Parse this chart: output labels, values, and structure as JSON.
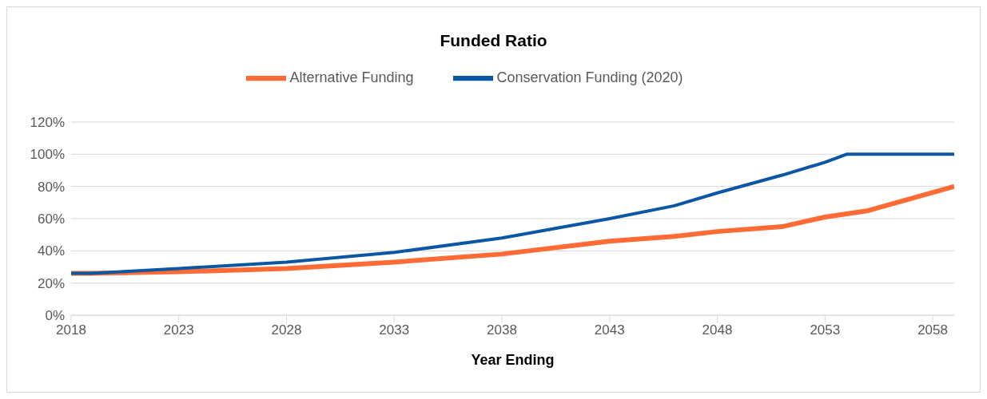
{
  "chart_data": {
    "type": "line",
    "title": "Funded Ratio",
    "xlabel": "Year Ending",
    "x": [
      2018,
      2019,
      2023,
      2028,
      2033,
      2038,
      2043,
      2046,
      2048,
      2051,
      2053,
      2054,
      2055,
      2059
    ],
    "series": [
      {
        "name": "Alternative Funding",
        "color": "#ff6b35",
        "values": [
          26,
          26,
          27,
          29,
          33,
          38,
          46,
          49,
          52,
          55,
          61,
          63,
          65,
          80
        ]
      },
      {
        "name": "Conservation Funding (2020)",
        "color": "#0b57a4",
        "values": [
          26,
          26,
          29,
          33,
          39,
          48,
          60,
          68,
          76,
          87,
          95,
          100,
          100,
          100
        ]
      }
    ],
    "xlim": [
      2018,
      2059
    ],
    "xticks": [
      2018,
      2023,
      2028,
      2033,
      2038,
      2043,
      2048,
      2053,
      2058
    ],
    "ylim": [
      0,
      120
    ],
    "yticks": [
      {
        "value": 0,
        "label": "0%"
      },
      {
        "value": 20,
        "label": "20%"
      },
      {
        "value": 40,
        "label": "40%"
      },
      {
        "value": 60,
        "label": "60%"
      },
      {
        "value": 80,
        "label": "80%"
      },
      {
        "value": 100,
        "label": "100%"
      },
      {
        "value": 120,
        "label": "120%"
      }
    ],
    "grid": "y",
    "legend": "top",
    "marker": "none",
    "line_style": "solid"
  }
}
